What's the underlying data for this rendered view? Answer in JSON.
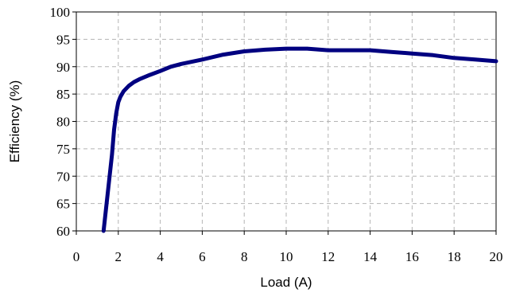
{
  "chart_data": {
    "type": "line",
    "title": "",
    "xlabel": "Load (A)",
    "ylabel": "Efficiency (%)",
    "xlim": [
      0,
      20
    ],
    "ylim": [
      60,
      100
    ],
    "xticks": [
      0,
      2,
      4,
      6,
      8,
      10,
      12,
      14,
      16,
      18,
      20
    ],
    "yticks": [
      60,
      65,
      70,
      75,
      80,
      85,
      90,
      95,
      100
    ],
    "grid": true,
    "legend": "none",
    "series": [
      {
        "color": "#000080",
        "x": [
          1.3,
          1.5,
          1.7,
          1.8,
          1.9,
          2.0,
          2.1,
          2.25,
          2.5,
          2.75,
          3.0,
          3.5,
          4.0,
          4.5,
          5.0,
          5.5,
          6.0,
          7.0,
          8.0,
          9.0,
          10.0,
          11.0,
          12.0,
          13.0,
          14.0,
          15.0,
          16.0,
          17.0,
          18.0,
          19.0,
          20.0
        ],
        "y": [
          60.0,
          67.0,
          74.0,
          78.5,
          81.5,
          83.5,
          84.5,
          85.5,
          86.5,
          87.2,
          87.7,
          88.5,
          89.2,
          90.0,
          90.5,
          90.9,
          91.3,
          92.2,
          92.8,
          93.1,
          93.3,
          93.3,
          93.0,
          93.0,
          93.0,
          92.7,
          92.4,
          92.1,
          91.6,
          91.3,
          91.0
        ]
      }
    ]
  }
}
